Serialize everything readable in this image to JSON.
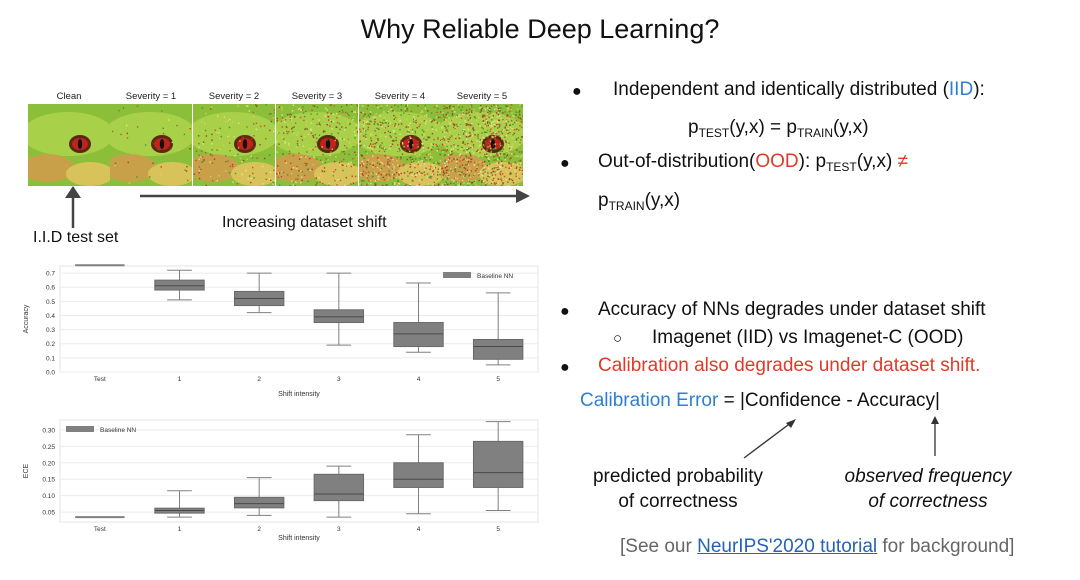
{
  "title": "Why Reliable Deep Learning?",
  "strip": {
    "labels": [
      "Clean",
      "Severity = 1",
      "Severity = 2",
      "Severity = 3",
      "Severity = 4",
      "Severity = 5"
    ],
    "iid_label": "I.I.D test set",
    "shift_label": "Increasing dataset shift"
  },
  "right": {
    "b1_text": "Independent and identically distributed (",
    "b1_iid": "IID",
    "b1_end": "):",
    "eq_left_p": "p",
    "eq_test": "TEST",
    "eq_mid": "(y,x) = p",
    "eq_train": "TRAIN",
    "eq_end": "(y,x)",
    "b2_text": "Out-of-distribution(",
    "b2_ood": "OOD",
    "b2_mid": "): p",
    "b2_test": "TEST",
    "b2_yx": "(y,x)",
    "b2_neq": "≠",
    "b2_line2_p": "p",
    "b2_line2_train": "TRAIN",
    "b2_line2_end": "(y,x)",
    "b3": "Accuracy of NNs degrades under dataset shift",
    "b3_sub": "Imagenet (IID) vs Imagenet-C (OOD)",
    "b4": "Calibration also degrades under dataset shift.",
    "calib_label": "Calibration Error",
    "calib_formula": " = |Confidence  -  Accuracy|",
    "pred_line1": "predicted probability",
    "pred_line2": "of correctness",
    "obs_line1": "observed frequency",
    "obs_line2": "of correctness",
    "ref_pre": "[See our ",
    "ref_link": "NeurIPS'2020 tutorial",
    "ref_post": " for background]",
    "bullet_char": "●",
    "sub_bullet_char": "○"
  },
  "colors": {
    "blue": "#2f7fd0",
    "red": "#e03a2a",
    "box": "#808080"
  },
  "chart_data": [
    {
      "type": "box",
      "categories": [
        "Test",
        "1",
        "2",
        "3",
        "4",
        "5"
      ],
      "xlabel": "Shift intensity",
      "ylabel": "Accuracy",
      "ylim": [
        0,
        0.75
      ],
      "yticks": [
        0.0,
        0.1,
        0.2,
        0.3,
        0.4,
        0.5,
        0.6,
        0.7
      ],
      "legend": "Baseline NN",
      "legend_position": "top-right",
      "boxes": [
        {
          "min": 0.755,
          "q1": 0.755,
          "median": 0.755,
          "q3": 0.755,
          "max": 0.755
        },
        {
          "min": 0.51,
          "q1": 0.58,
          "median": 0.61,
          "q3": 0.65,
          "max": 0.72
        },
        {
          "min": 0.42,
          "q1": 0.47,
          "median": 0.52,
          "q3": 0.57,
          "max": 0.7
        },
        {
          "min": 0.19,
          "q1": 0.35,
          "median": 0.39,
          "q3": 0.44,
          "max": 0.7
        },
        {
          "min": 0.14,
          "q1": 0.18,
          "median": 0.27,
          "q3": 0.35,
          "max": 0.63
        },
        {
          "min": 0.05,
          "q1": 0.09,
          "median": 0.18,
          "q3": 0.23,
          "max": 0.56
        }
      ]
    },
    {
      "type": "box",
      "categories": [
        "Test",
        "1",
        "2",
        "3",
        "4",
        "5"
      ],
      "xlabel": "Shift intensity",
      "ylabel": "ECE",
      "ylim": [
        0.02,
        0.33
      ],
      "yticks": [
        0.05,
        0.1,
        0.15,
        0.2,
        0.25,
        0.3
      ],
      "legend": "Baseline NN",
      "legend_position": "top-left",
      "boxes": [
        {
          "min": 0.035,
          "q1": 0.035,
          "median": 0.035,
          "q3": 0.035,
          "max": 0.035
        },
        {
          "min": 0.035,
          "q1": 0.047,
          "median": 0.055,
          "q3": 0.062,
          "max": 0.115
        },
        {
          "min": 0.04,
          "q1": 0.063,
          "median": 0.076,
          "q3": 0.095,
          "max": 0.155
        },
        {
          "min": 0.035,
          "q1": 0.085,
          "median": 0.105,
          "q3": 0.165,
          "max": 0.19
        },
        {
          "min": 0.045,
          "q1": 0.125,
          "median": 0.15,
          "q3": 0.2,
          "max": 0.285
        },
        {
          "min": 0.055,
          "q1": 0.125,
          "median": 0.17,
          "q3": 0.265,
          "max": 0.325
        }
      ]
    }
  ]
}
